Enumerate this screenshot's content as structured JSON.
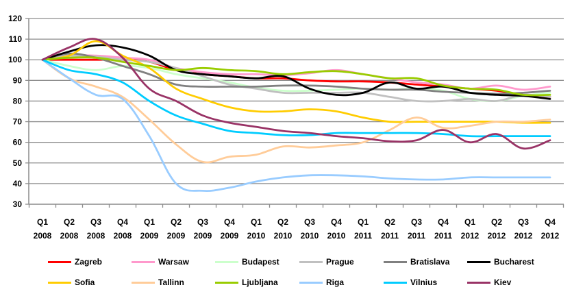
{
  "chart_data": {
    "type": "line",
    "title": "",
    "xlabel": "",
    "ylabel": "",
    "ylim": [
      30,
      120
    ],
    "yticks": [
      30,
      40,
      50,
      60,
      70,
      80,
      90,
      100,
      110,
      120
    ],
    "grid": true,
    "legend_position": "bottom",
    "categories": [
      {
        "q": "Q1",
        "y": "2008"
      },
      {
        "q": "Q2",
        "y": "2008"
      },
      {
        "q": "Q3",
        "y": "2008"
      },
      {
        "q": "Q4",
        "y": "2008"
      },
      {
        "q": "Q1",
        "y": "2009"
      },
      {
        "q": "Q2",
        "y": "2009"
      },
      {
        "q": "Q3",
        "y": "2009"
      },
      {
        "q": "Q4",
        "y": "2009"
      },
      {
        "q": "Q1",
        "y": "2010"
      },
      {
        "q": "Q2",
        "y": "2010"
      },
      {
        "q": "Q3",
        "y": "2010"
      },
      {
        "q": "Q4",
        "y": "2010"
      },
      {
        "q": "Q1",
        "y": "2011"
      },
      {
        "q": "Q2",
        "y": "2011"
      },
      {
        "q": "Q3",
        "y": "2011"
      },
      {
        "q": "Q4",
        "y": "2011"
      },
      {
        "q": "Q1",
        "y": "2012"
      },
      {
        "q": "Q2",
        "y": "2012"
      },
      {
        "q": "Q3",
        "y": "2012"
      },
      {
        "q": "Q4",
        "y": "2012"
      }
    ],
    "series": [
      {
        "name": "Zagreb",
        "color": "#ff0000",
        "values": [
          100,
          100,
          100,
          100,
          99,
          95,
          93,
          92,
          91,
          91,
          90,
          89.5,
          89.5,
          89,
          88,
          87,
          86,
          85,
          83,
          82
        ]
      },
      {
        "name": "Warsaw",
        "color": "#ff99cc",
        "values": [
          100,
          102,
          102,
          101,
          100,
          96,
          94,
          93,
          93,
          92.5,
          93.5,
          95,
          93,
          91,
          89,
          88,
          86,
          87.5,
          85.5,
          87
        ]
      },
      {
        "name": "Budapest",
        "color": "#ccffcc",
        "values": [
          100,
          97,
          95,
          97,
          96,
          93,
          91,
          89,
          86.5,
          85,
          85,
          85.5,
          86,
          85.5,
          86,
          85,
          81,
          80,
          82.5,
          84
        ]
      },
      {
        "name": "Prague",
        "color": "#c0c0c0",
        "values": [
          100,
          102,
          101.5,
          100,
          99,
          96,
          92,
          88,
          86,
          84,
          84,
          84,
          84,
          82,
          80,
          80,
          81,
          80,
          83,
          82
        ]
      },
      {
        "name": "Bratislava",
        "color": "#808080",
        "values": [
          100,
          103,
          101,
          97,
          93,
          88,
          87,
          87,
          87,
          87.5,
          87.5,
          87,
          86,
          85.5,
          85.5,
          84.5,
          84,
          83.5,
          84,
          85
        ]
      },
      {
        "name": "Bucharest",
        "color": "#000000",
        "values": [
          100,
          104,
          107,
          106,
          102,
          95,
          93,
          92,
          91,
          92,
          86,
          83,
          84,
          89,
          86,
          87,
          84,
          83,
          82.5,
          81
        ]
      },
      {
        "name": "Sofia",
        "color": "#ffcc00",
        "values": [
          100,
          102,
          109,
          102,
          96,
          86,
          81,
          77,
          75,
          75,
          76,
          75,
          72,
          70,
          70,
          70,
          70,
          70,
          69.5,
          69.5
        ]
      },
      {
        "name": "Tallinn",
        "color": "#ffcc99",
        "values": [
          100,
          91,
          87,
          82,
          71,
          59,
          50.5,
          53,
          54,
          58,
          57.5,
          58.5,
          60,
          66,
          72,
          67,
          68,
          70,
          70,
          71
        ]
      },
      {
        "name": "Ljubljana",
        "color": "#99cc00",
        "values": [
          100,
          101,
          101,
          99,
          97,
          95,
          96,
          95,
          94.5,
          93,
          94,
          94.5,
          93,
          91,
          91,
          87.5,
          86,
          85.5,
          83,
          83
        ]
      },
      {
        "name": "Riga",
        "color": "#99ccff",
        "values": [
          100,
          91,
          83,
          81,
          63,
          40,
          36.5,
          38,
          41,
          43,
          44,
          44,
          43.5,
          42.5,
          42,
          42,
          43,
          43,
          43,
          43
        ]
      },
      {
        "name": "Vilnius",
        "color": "#00ccff",
        "values": [
          100,
          95,
          93,
          89,
          80,
          73,
          69,
          65.5,
          64.5,
          63.5,
          63.5,
          64.5,
          64.5,
          64.5,
          64.5,
          64,
          63,
          63,
          63,
          63
        ]
      },
      {
        "name": "Kiev",
        "color": "#993366",
        "values": [
          100,
          106,
          110,
          101,
          86,
          80,
          73,
          69.5,
          67.5,
          65.5,
          64.5,
          63,
          62,
          60.5,
          61,
          66,
          60,
          64,
          57,
          61
        ]
      }
    ]
  }
}
